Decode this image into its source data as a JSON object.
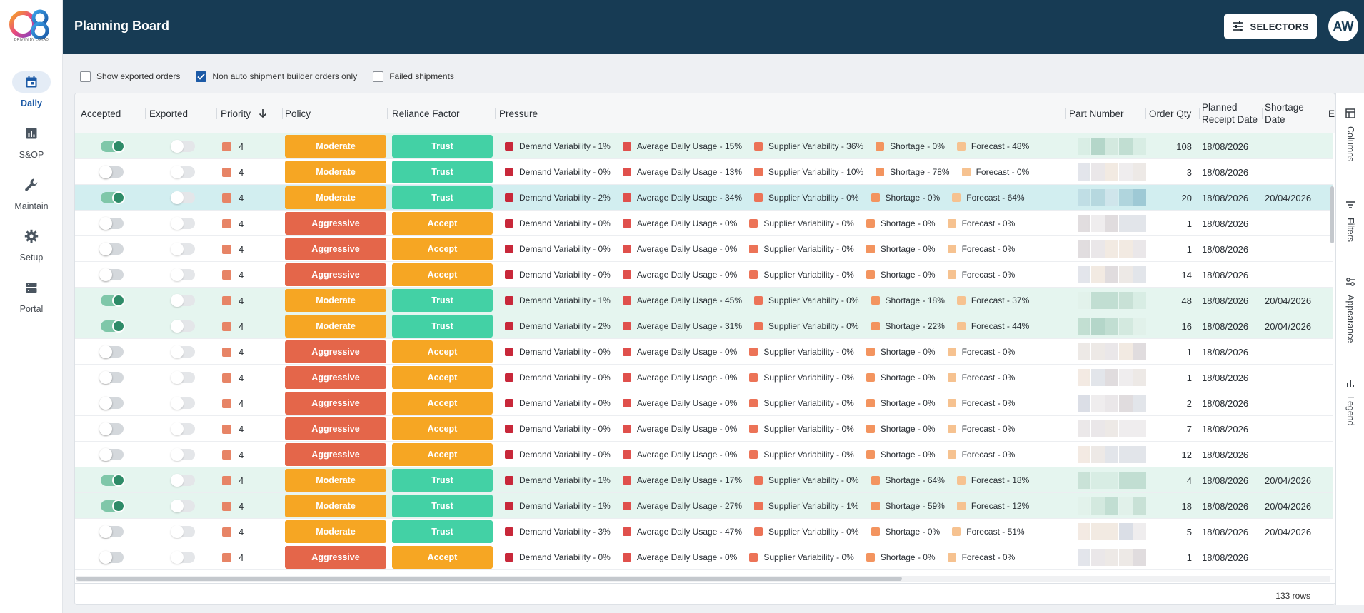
{
  "brand": {
    "logo_text": "O8",
    "tagline": "DRIVEN BY LOKAD"
  },
  "nav": [
    {
      "label": "Daily",
      "icon": "calendar-icon",
      "active": true
    },
    {
      "label": "S&OP",
      "icon": "bar-chart-icon",
      "active": false
    },
    {
      "label": "Maintain",
      "icon": "wrench-icon",
      "active": false
    },
    {
      "label": "Setup",
      "icon": "gear-icon",
      "active": false
    },
    {
      "label": "Portal",
      "icon": "server-icon",
      "active": false
    }
  ],
  "header": {
    "title": "Planning Board",
    "selectors_label": "SELECTORS",
    "avatar_initials": "AW"
  },
  "filters": [
    {
      "label": "Show exported orders",
      "checked": false
    },
    {
      "label": "Non auto shipment builder orders only",
      "checked": true
    },
    {
      "label": "Failed shipments",
      "checked": false
    }
  ],
  "columns": {
    "accepted": "Accepted",
    "exported": "Exported",
    "priority": "Priority",
    "policy": "Policy",
    "reliance": "Reliance Factor",
    "pressure": "Pressure",
    "part_number": "Part Number",
    "order_qty": "Order Qty",
    "planned_receipt": "Planned Receipt Date",
    "shortage_date": "Shortage Date",
    "cut": "E"
  },
  "pressure_labels": [
    "Demand Variability",
    "Average Daily Usage",
    "Supplier Variability",
    "Shortage",
    "Forecast"
  ],
  "pressure_colors": [
    "#c8283a",
    "#e0504c",
    "#ec7357",
    "#f3945f",
    "#f6c290"
  ],
  "status_colors": {
    "moderate": "#f6a623",
    "aggressive": "#e4664a",
    "trust": "#43d1a5",
    "accept": "#f6a623",
    "accepted_row": "#e5f5ef",
    "selected_row": "#d2eef0"
  },
  "rows": [
    {
      "accepted": true,
      "exported": false,
      "priority": "4",
      "policy": "Moderate",
      "reliance": "Trust",
      "pressure": [
        "Demand Variability - 1%",
        "Average Daily Usage - 15%",
        "Supplier Variability - 36%",
        "Shortage - 0%",
        "Forecast - 48%"
      ],
      "qty": "108",
      "planned": "18/08/2026",
      "shortage": ""
    },
    {
      "accepted": false,
      "exported": false,
      "priority": "4",
      "policy": "Moderate",
      "reliance": "Trust",
      "pressure": [
        "Demand Variability - 0%",
        "Average Daily Usage - 13%",
        "Supplier Variability - 10%",
        "Shortage - 78%",
        "Forecast - 0%"
      ],
      "qty": "3",
      "planned": "18/08/2026",
      "shortage": ""
    },
    {
      "accepted": true,
      "exported": false,
      "priority": "4",
      "policy": "Moderate",
      "reliance": "Trust",
      "pressure": [
        "Demand Variability - 2%",
        "Average Daily Usage - 34%",
        "Supplier Variability - 0%",
        "Shortage - 0%",
        "Forecast - 64%"
      ],
      "qty": "20",
      "planned": "18/08/2026",
      "shortage": "20/04/2026",
      "selected": true
    },
    {
      "accepted": false,
      "exported": false,
      "priority": "4",
      "policy": "Aggressive",
      "reliance": "Accept",
      "pressure": [
        "Demand Variability - 0%",
        "Average Daily Usage - 0%",
        "Supplier Variability - 0%",
        "Shortage - 0%",
        "Forecast - 0%"
      ],
      "qty": "1",
      "planned": "18/08/2026",
      "shortage": ""
    },
    {
      "accepted": false,
      "exported": false,
      "priority": "4",
      "policy": "Aggressive",
      "reliance": "Accept",
      "pressure": [
        "Demand Variability - 0%",
        "Average Daily Usage - 0%",
        "Supplier Variability - 0%",
        "Shortage - 0%",
        "Forecast - 0%"
      ],
      "qty": "1",
      "planned": "18/08/2026",
      "shortage": ""
    },
    {
      "accepted": false,
      "exported": false,
      "priority": "4",
      "policy": "Aggressive",
      "reliance": "Accept",
      "pressure": [
        "Demand Variability - 0%",
        "Average Daily Usage - 0%",
        "Supplier Variability - 0%",
        "Shortage - 0%",
        "Forecast - 0%"
      ],
      "qty": "14",
      "planned": "18/08/2026",
      "shortage": ""
    },
    {
      "accepted": true,
      "exported": false,
      "priority": "4",
      "policy": "Moderate",
      "reliance": "Trust",
      "pressure": [
        "Demand Variability - 1%",
        "Average Daily Usage - 45%",
        "Supplier Variability - 0%",
        "Shortage - 18%",
        "Forecast - 37%"
      ],
      "qty": "48",
      "planned": "18/08/2026",
      "shortage": "20/04/2026"
    },
    {
      "accepted": true,
      "exported": false,
      "priority": "4",
      "policy": "Moderate",
      "reliance": "Trust",
      "pressure": [
        "Demand Variability - 2%",
        "Average Daily Usage - 31%",
        "Supplier Variability - 0%",
        "Shortage - 22%",
        "Forecast - 44%"
      ],
      "qty": "16",
      "planned": "18/08/2026",
      "shortage": "20/04/2026"
    },
    {
      "accepted": false,
      "exported": false,
      "priority": "4",
      "policy": "Aggressive",
      "reliance": "Accept",
      "pressure": [
        "Demand Variability - 0%",
        "Average Daily Usage - 0%",
        "Supplier Variability - 0%",
        "Shortage - 0%",
        "Forecast - 0%"
      ],
      "qty": "1",
      "planned": "18/08/2026",
      "shortage": ""
    },
    {
      "accepted": false,
      "exported": false,
      "priority": "4",
      "policy": "Aggressive",
      "reliance": "Accept",
      "pressure": [
        "Demand Variability - 0%",
        "Average Daily Usage - 0%",
        "Supplier Variability - 0%",
        "Shortage - 0%",
        "Forecast - 0%"
      ],
      "qty": "1",
      "planned": "18/08/2026",
      "shortage": ""
    },
    {
      "accepted": false,
      "exported": false,
      "priority": "4",
      "policy": "Aggressive",
      "reliance": "Accept",
      "pressure": [
        "Demand Variability - 0%",
        "Average Daily Usage - 0%",
        "Supplier Variability - 0%",
        "Shortage - 0%",
        "Forecast - 0%"
      ],
      "qty": "2",
      "planned": "18/08/2026",
      "shortage": ""
    },
    {
      "accepted": false,
      "exported": false,
      "priority": "4",
      "policy": "Aggressive",
      "reliance": "Accept",
      "pressure": [
        "Demand Variability - 0%",
        "Average Daily Usage - 0%",
        "Supplier Variability - 0%",
        "Shortage - 0%",
        "Forecast - 0%"
      ],
      "qty": "7",
      "planned": "18/08/2026",
      "shortage": ""
    },
    {
      "accepted": false,
      "exported": false,
      "priority": "4",
      "policy": "Aggressive",
      "reliance": "Accept",
      "pressure": [
        "Demand Variability - 0%",
        "Average Daily Usage - 0%",
        "Supplier Variability - 0%",
        "Shortage - 0%",
        "Forecast - 0%"
      ],
      "qty": "12",
      "planned": "18/08/2026",
      "shortage": ""
    },
    {
      "accepted": true,
      "exported": false,
      "priority": "4",
      "policy": "Moderate",
      "reliance": "Trust",
      "pressure": [
        "Demand Variability - 1%",
        "Average Daily Usage - 17%",
        "Supplier Variability - 0%",
        "Shortage - 64%",
        "Forecast - 18%"
      ],
      "qty": "4",
      "planned": "18/08/2026",
      "shortage": "20/04/2026"
    },
    {
      "accepted": true,
      "exported": false,
      "priority": "4",
      "policy": "Moderate",
      "reliance": "Trust",
      "pressure": [
        "Demand Variability - 1%",
        "Average Daily Usage - 27%",
        "Supplier Variability - 1%",
        "Shortage - 59%",
        "Forecast - 12%"
      ],
      "qty": "18",
      "planned": "18/08/2026",
      "shortage": "20/04/2026"
    },
    {
      "accepted": false,
      "exported": false,
      "priority": "4",
      "policy": "Moderate",
      "reliance": "Trust",
      "pressure": [
        "Demand Variability - 3%",
        "Average Daily Usage - 47%",
        "Supplier Variability - 0%",
        "Shortage - 0%",
        "Forecast - 51%"
      ],
      "qty": "5",
      "planned": "18/08/2026",
      "shortage": "20/04/2026"
    },
    {
      "accepted": false,
      "exported": false,
      "priority": "4",
      "policy": "Aggressive",
      "reliance": "Accept",
      "pressure": [
        "Demand Variability - 0%",
        "Average Daily Usage - 0%",
        "Supplier Variability - 0%",
        "Shortage - 0%",
        "Forecast - 0%"
      ],
      "qty": "1",
      "planned": "18/08/2026",
      "shortage": ""
    }
  ],
  "footer": {
    "row_count": "133 rows"
  },
  "side_panel": [
    {
      "label": "Columns",
      "icon": "table-icon"
    },
    {
      "label": "Filters",
      "icon": "filter-lines-icon"
    },
    {
      "label": "Appearance",
      "icon": "sliders-icon"
    },
    {
      "label": "Legend",
      "icon": "bar-chart-icon"
    }
  ]
}
